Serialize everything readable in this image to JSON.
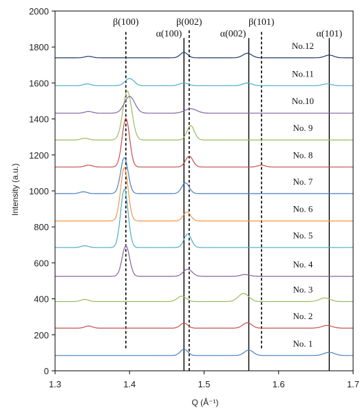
{
  "chart_data": {
    "type": "line",
    "title": "",
    "xlabel": "Q (Å⁻¹)",
    "ylabel": "Intensity (a.u.)",
    "xlim": [
      1.3,
      1.7
    ],
    "ylim": [
      0,
      2000
    ],
    "x_ticks": [
      "1.3",
      "1.4",
      "1.5",
      "1.6",
      "1.7"
    ],
    "y_ticks": [
      "0",
      "200",
      "400",
      "600",
      "800",
      "1000",
      "1200",
      "1400",
      "1600",
      "1800",
      "2000"
    ],
    "grid": false,
    "reference_lines": [
      {
        "label": "β(100)",
        "x": 1.395,
        "style": "dashed",
        "y_range": [
          125,
          1895
        ]
      },
      {
        "label": "α(100)",
        "x": 1.473,
        "style": "solid",
        "y_range": [
          0,
          1850
        ]
      },
      {
        "label": "β(002)",
        "x": 1.48,
        "style": "dashed",
        "y_range": [
          0,
          1895
        ]
      },
      {
        "label": "α(002)",
        "x": 1.56,
        "style": "solid",
        "y_range": [
          0,
          1850
        ]
      },
      {
        "label": "β(101)",
        "x": 1.577,
        "style": "dashed",
        "y_range": [
          125,
          1895
        ]
      },
      {
        "label": "α(101)",
        "x": 1.668,
        "style": "solid",
        "y_range": [
          0,
          1850
        ]
      }
    ],
    "series": [
      {
        "name": "No. 1",
        "color": "#4a7ebb",
        "baseline": 85,
        "peaks": [
          [
            1.473,
            35,
            0.005
          ],
          [
            1.56,
            30,
            0.006
          ],
          [
            1.668,
            18,
            0.007
          ]
        ]
      },
      {
        "name": "No. 2",
        "color": "#c0504d",
        "baseline": 237,
        "peaks": [
          [
            1.345,
            12,
            0.005
          ],
          [
            1.473,
            28,
            0.005
          ],
          [
            1.558,
            30,
            0.006
          ],
          [
            1.665,
            15,
            0.007
          ]
        ]
      },
      {
        "name": "No. 3",
        "color": "#9bbb59",
        "baseline": 385,
        "peaks": [
          [
            1.34,
            12,
            0.005
          ],
          [
            1.47,
            30,
            0.006
          ],
          [
            1.553,
            45,
            0.007
          ],
          [
            1.662,
            20,
            0.007
          ]
        ]
      },
      {
        "name": "No. 4",
        "color": "#8064a2",
        "baseline": 525,
        "peaks": [
          [
            1.395,
            170,
            0.005
          ],
          [
            1.478,
            40,
            0.006
          ],
          [
            1.555,
            10,
            0.006
          ]
        ]
      },
      {
        "name": "No. 5",
        "color": "#4bacc6",
        "baseline": 685,
        "peaks": [
          [
            1.34,
            10,
            0.005
          ],
          [
            1.393,
            325,
            0.005
          ],
          [
            1.478,
            75,
            0.005
          ]
        ]
      },
      {
        "name": "No. 6",
        "color": "#f79646",
        "baseline": 833,
        "peaks": [
          [
            1.393,
            297,
            0.005
          ],
          [
            1.477,
            50,
            0.005
          ]
        ]
      },
      {
        "name": "No. 7",
        "color": "#4a7ebb",
        "baseline": 985,
        "peaks": [
          [
            1.338,
            10,
            0.005
          ],
          [
            1.393,
            200,
            0.005
          ],
          [
            1.475,
            60,
            0.005
          ]
        ]
      },
      {
        "name": "No. 8",
        "color": "#c0504d",
        "baseline": 1133,
        "peaks": [
          [
            1.345,
            10,
            0.005
          ],
          [
            1.395,
            270,
            0.005
          ],
          [
            1.48,
            60,
            0.005
          ],
          [
            1.577,
            10,
            0.005
          ]
        ]
      },
      {
        "name": "No. 9",
        "color": "#9bbb59",
        "baseline": 1283,
        "peaks": [
          [
            1.34,
            10,
            0.005
          ],
          [
            1.397,
            272,
            0.006
          ],
          [
            1.482,
            80,
            0.005
          ]
        ]
      },
      {
        "name": "No.10",
        "color": "#8064a2",
        "baseline": 1432,
        "peaks": [
          [
            1.345,
            10,
            0.005
          ],
          [
            1.4,
            93,
            0.007
          ],
          [
            1.482,
            25,
            0.008
          ]
        ]
      },
      {
        "name": "No.11",
        "color": "#4bacc6",
        "baseline": 1585,
        "peaks": [
          [
            1.343,
            10,
            0.005
          ],
          [
            1.4,
            40,
            0.006
          ],
          [
            1.473,
            15,
            0.006
          ],
          [
            1.558,
            15,
            0.006
          ],
          [
            1.665,
            10,
            0.006
          ]
        ]
      },
      {
        "name": "No.12",
        "color": "#1f3864",
        "baseline": 1740,
        "peaks": [
          [
            1.345,
            8,
            0.005
          ],
          [
            1.473,
            30,
            0.005
          ],
          [
            1.558,
            25,
            0.006
          ],
          [
            1.668,
            15,
            0.006
          ]
        ]
      }
    ]
  }
}
